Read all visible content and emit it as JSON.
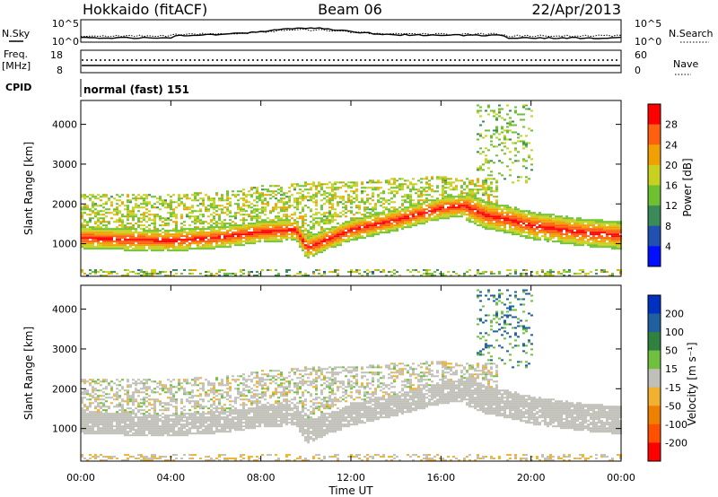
{
  "header": {
    "station": "Hokkaido (fitACF)",
    "beam": "Beam 06",
    "date": "22/Apr/2013"
  },
  "summary_panels": {
    "nsky_label": "N.Sky",
    "nsky_ticks": [
      "10^5",
      "10^0"
    ],
    "nsearch_label": "N.Search",
    "nsearch_ticks": [
      "10^5",
      "10^0"
    ],
    "freq_label_1": "Freq.",
    "freq_label_2": "[MHz]",
    "freq_ticks": [
      "18",
      "8"
    ],
    "nave_label": "Nave",
    "nave_ticks": [
      "60",
      "0"
    ],
    "cpid_label": "CPID",
    "cpid_value": "normal (fast) 151"
  },
  "chart_data": [
    {
      "type": "heatmap",
      "title": "",
      "xlabel": "Time UT",
      "ylabel": "Slant Range [km]",
      "x_ticks": [
        "00:00",
        "04:00",
        "08:00",
        "12:00",
        "16:00",
        "20:00",
        "00:00"
      ],
      "y_ticks": [
        1000,
        2000,
        3000,
        4000
      ],
      "ylim": [
        180,
        4600
      ],
      "colorbar": {
        "label": "Power [dB]",
        "ticks": [
          "4",
          "8",
          "12",
          "16",
          "20",
          "24",
          "28"
        ],
        "colors": [
          "#0010ff",
          "#2050b0",
          "#3a8a5a",
          "#6fc030",
          "#c8d020",
          "#f0a000",
          "#ff6010",
          "#ff0000"
        ]
      },
      "series": [
        {
          "x": [
            0,
            2,
            4,
            6,
            8,
            9.5,
            10,
            12,
            14,
            16,
            17,
            18,
            19,
            20,
            22,
            24
          ],
          "values": [
            1150,
            1100,
            1080,
            1150,
            1300,
            1350,
            900,
            1350,
            1600,
            1900,
            1950,
            1700,
            1600,
            1450,
            1300,
            1200
          ]
        },
        {
          "x": [
            0,
            4,
            6,
            8,
            10,
            12,
            14,
            16,
            18
          ],
          "values": [
            1900,
            1900,
            1950,
            2100,
            2200,
            2200,
            2300,
            2350,
            2300
          ]
        }
      ]
    },
    {
      "type": "heatmap",
      "title": "",
      "xlabel": "Time UT",
      "ylabel": "Slant Range [km]",
      "x_ticks": [
        "00:00",
        "04:00",
        "08:00",
        "12:00",
        "16:00",
        "20:00",
        "00:00"
      ],
      "y_ticks": [
        1000,
        2000,
        3000,
        4000
      ],
      "ylim": [
        180,
        4600
      ],
      "colorbar": {
        "label": "Velocity [m s⁻¹]",
        "ticks": [
          "200",
          "100",
          "50",
          "15",
          "-15",
          "-50",
          "-100",
          "-200"
        ],
        "colors": [
          "#0030c0",
          "#2060a0",
          "#308040",
          "#70c040",
          "#c0c0b8",
          "#f0b030",
          "#f08000",
          "#ff5000",
          "#ff0000"
        ]
      }
    }
  ]
}
